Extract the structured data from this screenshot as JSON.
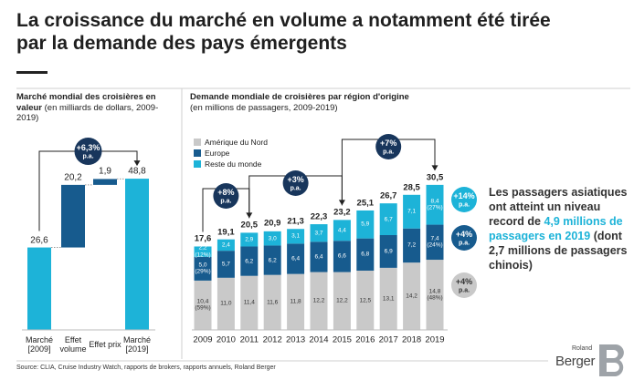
{
  "title": "La croissance du marché en volume a notamment été tirée par la demande des pays émergents",
  "chart_data": [
    {
      "type": "waterfall",
      "title": "Marché mondial des croisières en valeur",
      "subtitle": "(en milliards de dollars, 2009-2019)",
      "categories": [
        "Marché [2009]",
        "Effet volume",
        "Effet prix",
        "Marché [2019]"
      ],
      "values": [
        26.6,
        20.2,
        1.9,
        48.8
      ],
      "value_labels": [
        "26,6",
        "20,2",
        "1,9",
        "48,8"
      ],
      "measure": [
        "absolute",
        "relative",
        "relative",
        "total"
      ],
      "colors": [
        "#1db3d8",
        "#175b8e",
        "#175b8e",
        "#1db3d8"
      ],
      "growth": {
        "label": "+6,3%",
        "unit": "p.a."
      }
    },
    {
      "type": "bar",
      "stacked": true,
      "title": "Demande mondiale de croisières par région d'origine",
      "subtitle": "(en millions de passagers, 2009-2019)",
      "categories": [
        "2009",
        "2010",
        "2011",
        "2012",
        "2013",
        "2014",
        "2015",
        "2016",
        "2017",
        "2018",
        "2019"
      ],
      "series": [
        {
          "name": "Amérique du Nord",
          "color": "#c9c9c9",
          "values": [
            10.4,
            11.0,
            11.4,
            11.6,
            11.8,
            12.2,
            12.2,
            12.5,
            13.1,
            14.2,
            14.8
          ],
          "value_labels": [
            "10,4 (59%)",
            "11,0",
            "11,4",
            "11,6",
            "11,8",
            "12,2",
            "12,2",
            "12,5",
            "13,1",
            "14,2",
            "14,8 (48%)"
          ],
          "growth": "+4%",
          "growth_unit": "p.a."
        },
        {
          "name": "Europe",
          "color": "#175b8e",
          "values": [
            5.0,
            5.7,
            6.2,
            6.2,
            6.4,
            6.4,
            6.6,
            6.8,
            6.9,
            7.2,
            7.4
          ],
          "value_labels": [
            "5,0 (29%)",
            "5,7",
            "6,2",
            "6,2",
            "6,4",
            "6,4",
            "6,6",
            "6,8",
            "6,9",
            "7,2",
            "7,4 (24%)"
          ],
          "growth": "+4%",
          "growth_unit": "p.a."
        },
        {
          "name": "Reste du monde",
          "color": "#1db3d8",
          "values": [
            2.2,
            2.4,
            2.9,
            3.0,
            3.1,
            3.7,
            4.4,
            5.9,
            6.7,
            7.1,
            8.4
          ],
          "value_labels": [
            "2,2 (12%)",
            "2,4",
            "2,9",
            "3,0",
            "3,1",
            "3,7",
            "4,4",
            "5,9",
            "6,7",
            "7,1",
            "8,4 (27%)"
          ],
          "growth": "+14%",
          "growth_unit": "p.a."
        }
      ],
      "totals": [
        17.6,
        19.1,
        20.5,
        20.9,
        21.3,
        22.3,
        23.2,
        25.1,
        26.7,
        28.5,
        30.5
      ],
      "total_labels": [
        "17,6",
        "19,1",
        "20,5",
        "20,9",
        "21,3",
        "22,3",
        "23,2",
        "25,1",
        "26,7",
        "28,5",
        "30,5"
      ],
      "growth": [
        {
          "label": "+8%",
          "unit": "p.a."
        },
        {
          "label": "+3%",
          "unit": "p.a."
        },
        {
          "label": "+7%",
          "unit": "p.a."
        }
      ],
      "legend": "upper left"
    }
  ],
  "annotation": {
    "before": "Les passagers asiatiques ont atteint un niveau record de",
    "highlight": "4,9 millions de passagers en 2019",
    "after": "(dont 2,7 millions de passagers chinois)"
  },
  "source": "Source: CLIA, Cruise Industry Watch, rapports de brokers, rapports annuels, Roland Berger",
  "logo": {
    "small": "Roland",
    "large": "Berger"
  }
}
